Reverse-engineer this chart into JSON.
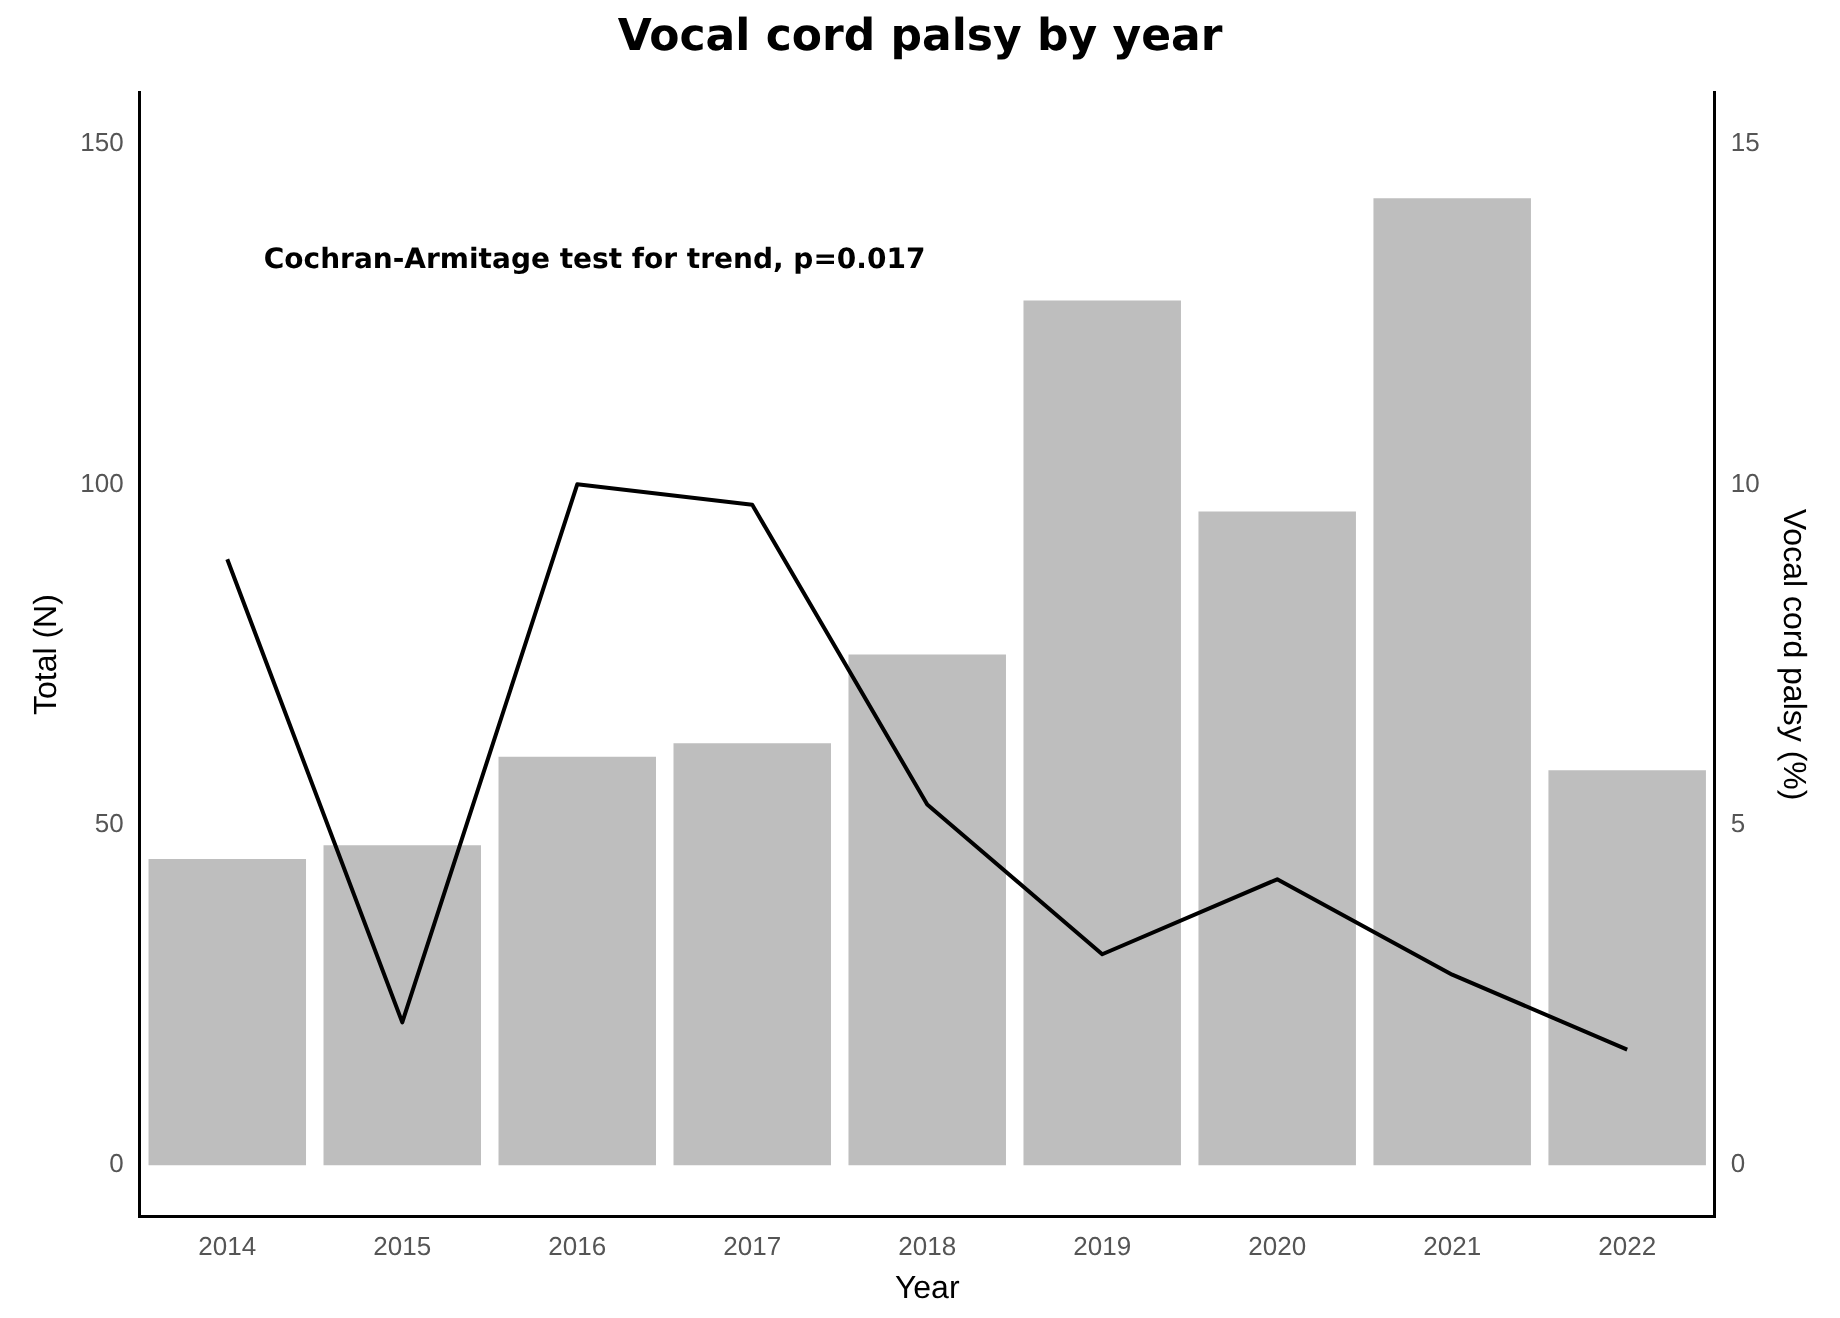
{
  "chart_data": {
    "type": "bar",
    "title": "Vocal cord palsy by year",
    "xlabel": "Year",
    "ylabel": "Total (N)",
    "y2label": "Vocal cord palsy (%)",
    "categories": [
      "2014",
      "2015",
      "2016",
      "2017",
      "2018",
      "2019",
      "2020",
      "2021",
      "2022"
    ],
    "series": [
      {
        "color": "#bebebe",
        "values": [
          45,
          47,
          60,
          62,
          75,
          127,
          96,
          142,
          58
        ]
      },
      {
        "type": "line",
        "axis": "y2",
        "color": "#000000",
        "values": [
          8.9,
          2.1,
          10.0,
          9.7,
          5.3,
          3.1,
          4.2,
          2.8,
          1.7
        ]
      }
    ],
    "ylim": [
      -7.5,
      157.5
    ],
    "yticks": [
      0,
      50,
      100,
      150
    ],
    "y2lim": [
      -0.75,
      15.75
    ],
    "y2ticks": [
      0,
      5,
      10,
      15
    ],
    "grid": false,
    "legend": false,
    "marker": "none",
    "line_style": "solid",
    "annotations": [
      "Cochran-Armitage test for trend, p=0.017"
    ]
  }
}
